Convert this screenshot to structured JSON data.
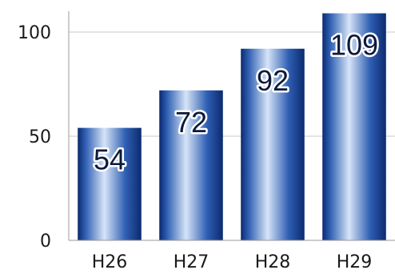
{
  "chart_data": {
    "type": "bar",
    "categories": [
      "H26",
      "H27",
      "H28",
      "H29"
    ],
    "values": [
      54,
      72,
      92,
      109
    ],
    "data_labels": [
      "54",
      "72",
      "92",
      "109"
    ],
    "yticks": [
      0,
      50,
      100
    ],
    "ylim": [
      0,
      110
    ],
    "grid": true,
    "legend": "none",
    "colors": {
      "bar_dark": "#0b2a6e",
      "bar_mid": "#2f5fb3",
      "bar_light": "#d6e4f7",
      "grid": "#c8c8c8",
      "axis": "#9a9a9a"
    }
  }
}
